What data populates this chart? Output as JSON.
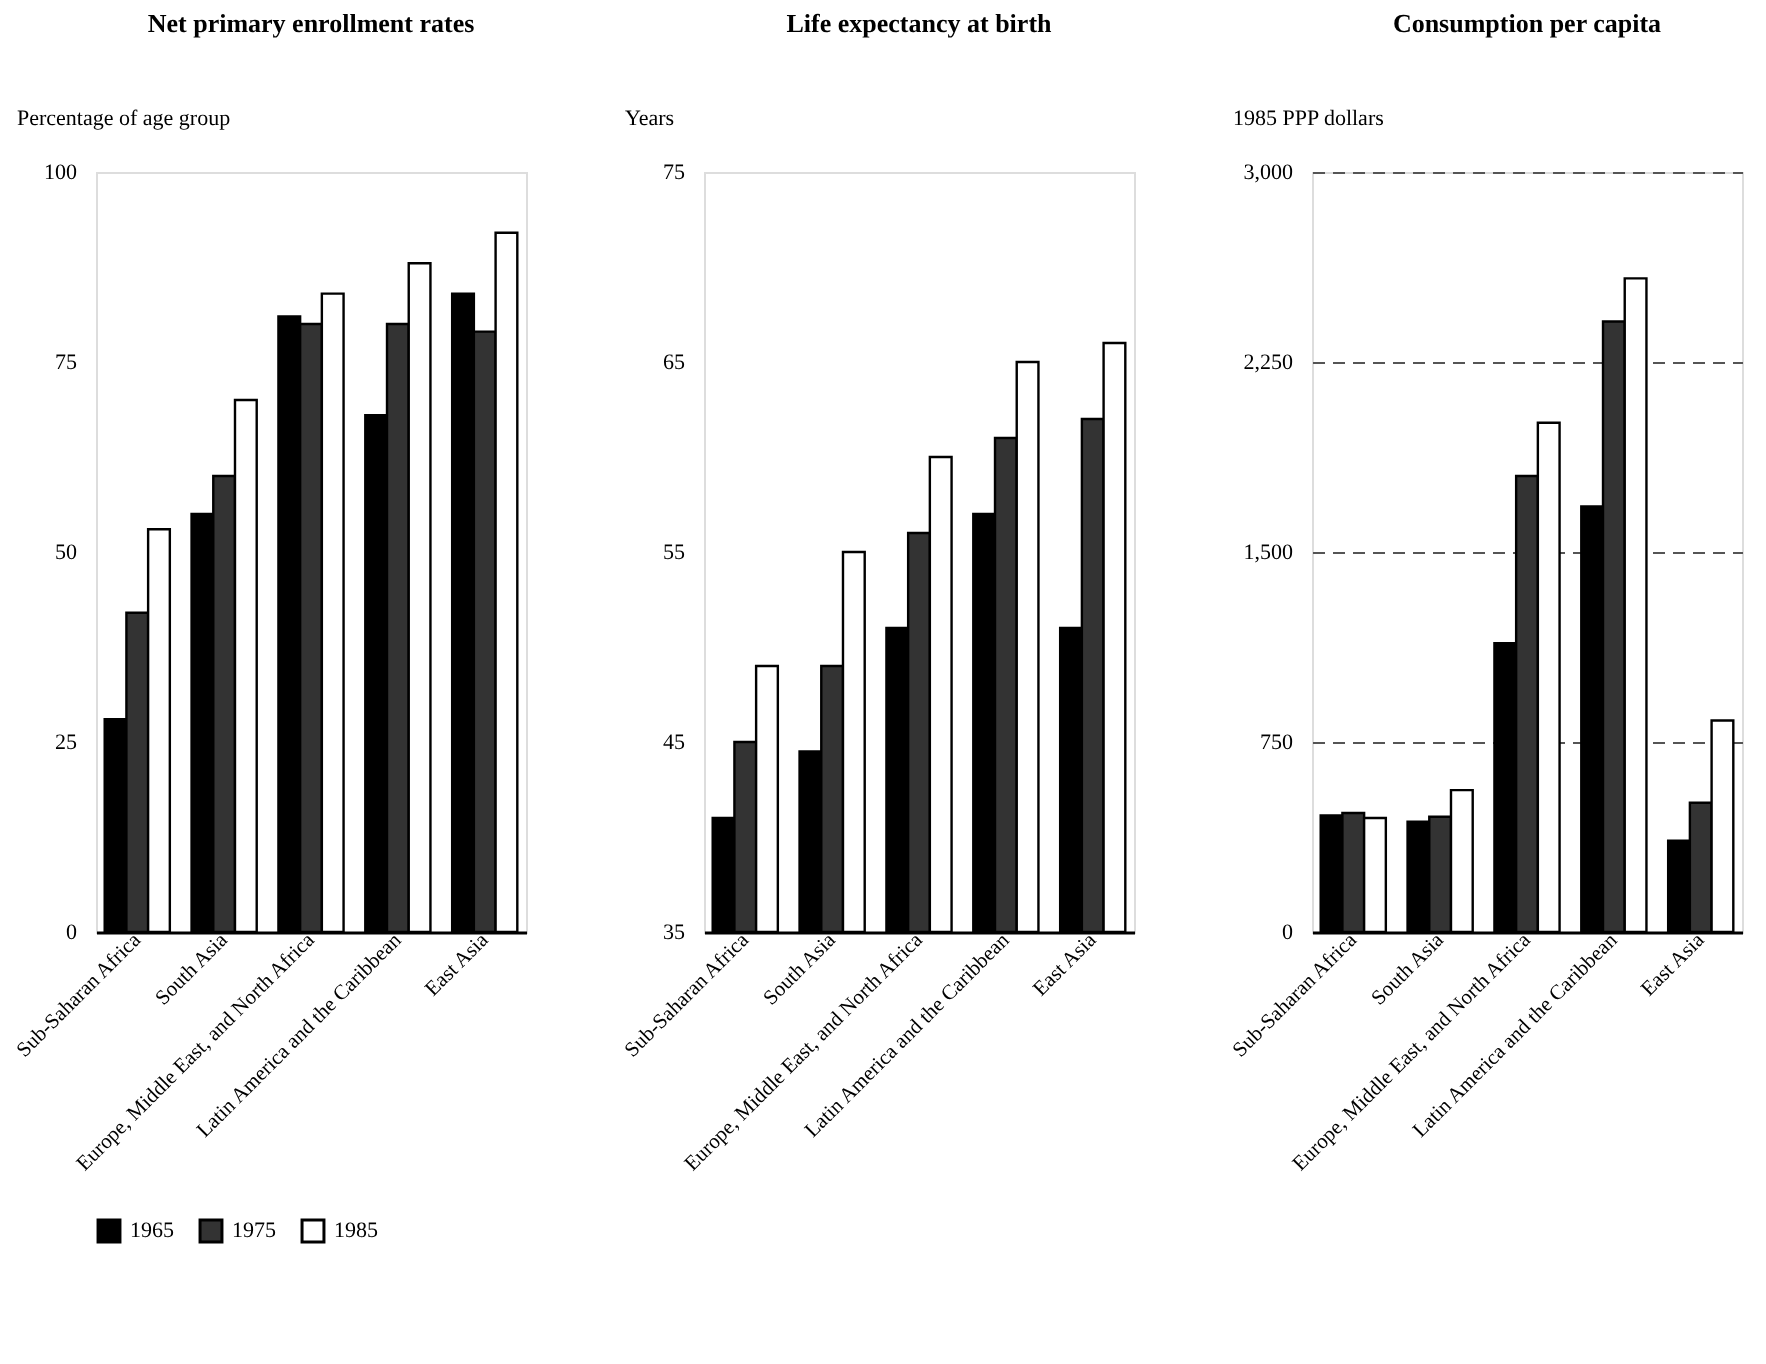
{
  "chart_data": [
    {
      "type": "bar",
      "title": "Net primary enrollment rates",
      "ylabel": "Percentage of age group",
      "categories": [
        "Sub-Saharan Africa",
        "South Asia",
        "Europe, Middle East, and North Africa",
        "Latin America and the Caribbean",
        "East Asia"
      ],
      "series": [
        {
          "name": "1965",
          "color": "#000000",
          "values": [
            28,
            55,
            81,
            68,
            84
          ]
        },
        {
          "name": "1975",
          "color": "#333333",
          "values": [
            42,
            60,
            80,
            80,
            79
          ]
        },
        {
          "name": "1985",
          "color": "#ffffff",
          "values": [
            53,
            70,
            84,
            88,
            92
          ]
        }
      ],
      "ylim": [
        0,
        100
      ],
      "yticks": [
        0,
        25,
        50,
        75,
        100
      ],
      "grid": false,
      "legend": "bottom left"
    },
    {
      "type": "bar",
      "title": "Life expectancy at birth",
      "ylabel": "Years",
      "categories": [
        "Sub-Saharan Africa",
        "South Asia",
        "Europe, Middle East, and North Africa",
        "Latin America and the Caribbean",
        "East Asia"
      ],
      "series": [
        {
          "name": "1965",
          "color": "#000000",
          "values": [
            41,
            44.5,
            51,
            57,
            51
          ]
        },
        {
          "name": "1975",
          "color": "#333333",
          "values": [
            45,
            49,
            56,
            61,
            62
          ]
        },
        {
          "name": "1985",
          "color": "#ffffff",
          "values": [
            49,
            55,
            60,
            65,
            66
          ]
        }
      ],
      "ylim": [
        35,
        75
      ],
      "yticks": [
        35,
        45,
        55,
        65,
        75
      ],
      "grid": false,
      "legend": false
    },
    {
      "type": "bar",
      "title": "Consumption per capita",
      "ylabel": "1985 PPP dollars",
      "categories": [
        "Sub-Saharan Africa",
        "South Asia",
        "Europe, Middle East, and North Africa",
        "Latin America and the Caribbean",
        "East Asia"
      ],
      "series": [
        {
          "name": "1965",
          "color": "#000000",
          "values": [
            460,
            435,
            1140,
            1680,
            360
          ]
        },
        {
          "name": "1975",
          "color": "#333333",
          "values": [
            470,
            455,
            1800,
            2410,
            510
          ]
        },
        {
          "name": "1985",
          "color": "#ffffff",
          "values": [
            450,
            560,
            2010,
            2580,
            835
          ]
        }
      ],
      "ylim": [
        0,
        3000
      ],
      "yticks": [
        0,
        750,
        {
          "value": 1500,
          "label": "1,500"
        },
        {
          "value": 2250,
          "label": "2,250"
        },
        {
          "value": 3000,
          "label": "3,000"
        }
      ],
      "grid": "y",
      "legend": false
    }
  ]
}
